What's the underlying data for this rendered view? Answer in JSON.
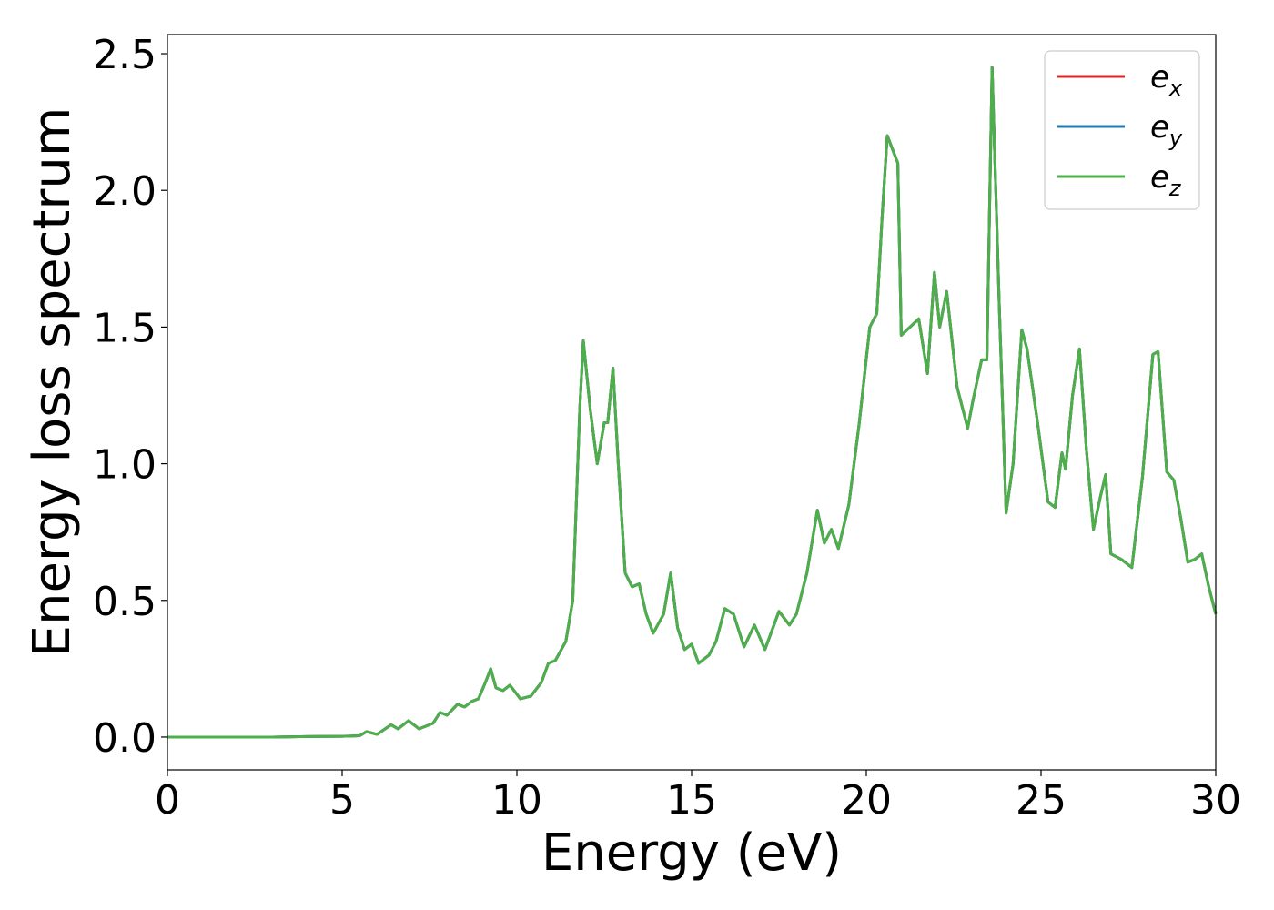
{
  "chart_data": {
    "type": "line",
    "xlabel": "Energy (eV)",
    "ylabel": "Energy loss spectrum",
    "xlim": [
      0,
      30
    ],
    "ylim": [
      -0.12,
      2.57
    ],
    "xticks": [
      "0",
      "5",
      "10",
      "15",
      "20",
      "25",
      "30"
    ],
    "yticks": [
      "0.0",
      "0.5",
      "1.0",
      "1.5",
      "2.0",
      "2.5"
    ],
    "grid": false,
    "legend_position": "top-right",
    "legend": [
      {
        "base": "e",
        "sub": "x",
        "color": "#d62728"
      },
      {
        "base": "e",
        "sub": "y",
        "color": "#1f77b4"
      },
      {
        "base": "e",
        "sub": "z",
        "color": "#4daf4a"
      }
    ],
    "x": [
      0,
      1,
      2,
      3,
      4,
      5,
      5.5,
      5.7,
      6.0,
      6.4,
      6.6,
      6.9,
      7.2,
      7.6,
      7.8,
      8.0,
      8.3,
      8.5,
      8.7,
      8.9,
      9.1,
      9.25,
      9.4,
      9.6,
      9.8,
      10.1,
      10.4,
      10.7,
      10.9,
      11.1,
      11.4,
      11.6,
      11.8,
      11.9,
      12.1,
      12.3,
      12.5,
      12.6,
      12.75,
      12.9,
      13.1,
      13.3,
      13.5,
      13.7,
      13.9,
      14.2,
      14.4,
      14.6,
      14.8,
      15.0,
      15.2,
      15.5,
      15.7,
      15.95,
      16.2,
      16.5,
      16.8,
      17.1,
      17.5,
      17.8,
      18.0,
      18.3,
      18.6,
      18.8,
      19.0,
      19.2,
      19.5,
      19.8,
      20.1,
      20.3,
      20.45,
      20.6,
      20.9,
      21.0,
      21.5,
      21.75,
      21.95,
      22.1,
      22.3,
      22.6,
      22.9,
      23.05,
      23.3,
      23.45,
      23.6,
      23.8,
      24.0,
      24.2,
      24.45,
      24.6,
      24.9,
      25.2,
      25.4,
      25.6,
      25.7,
      25.9,
      26.1,
      26.3,
      26.5,
      26.7,
      26.85,
      27.0,
      27.3,
      27.6,
      27.9,
      28.2,
      28.35,
      28.6,
      28.8,
      29.0,
      29.2,
      29.4,
      29.6,
      29.8,
      30.0
    ],
    "series": [
      {
        "name": "e_x",
        "values": [
          0.0,
          0.0,
          0.0,
          0.0,
          0.002,
          0.003,
          0.005,
          0.02,
          0.01,
          0.045,
          0.03,
          0.06,
          0.03,
          0.05,
          0.09,
          0.08,
          0.12,
          0.11,
          0.13,
          0.14,
          0.2,
          0.25,
          0.18,
          0.17,
          0.19,
          0.14,
          0.15,
          0.2,
          0.27,
          0.28,
          0.35,
          0.5,
          1.2,
          1.45,
          1.2,
          1.0,
          1.15,
          1.15,
          1.35,
          1.0,
          0.6,
          0.55,
          0.56,
          0.45,
          0.38,
          0.45,
          0.6,
          0.4,
          0.32,
          0.34,
          0.27,
          0.3,
          0.35,
          0.47,
          0.45,
          0.33,
          0.41,
          0.32,
          0.46,
          0.41,
          0.45,
          0.6,
          0.83,
          0.71,
          0.76,
          0.69,
          0.85,
          1.15,
          1.5,
          1.55,
          1.9,
          2.2,
          2.1,
          1.47,
          1.53,
          1.33,
          1.7,
          1.5,
          1.63,
          1.28,
          1.13,
          1.23,
          1.38,
          1.38,
          2.45,
          1.6,
          0.82,
          1.0,
          1.49,
          1.42,
          1.15,
          0.86,
          0.84,
          1.04,
          0.98,
          1.25,
          1.42,
          1.05,
          0.76,
          0.88,
          0.96,
          0.67,
          0.65,
          0.62,
          0.95,
          1.4,
          1.41,
          0.97,
          0.94,
          0.8,
          0.64,
          0.65,
          0.67,
          0.55,
          0.45
        ]
      },
      {
        "name": "e_y",
        "values": [
          0.0,
          0.0,
          0.0,
          0.0,
          0.002,
          0.003,
          0.005,
          0.02,
          0.01,
          0.045,
          0.03,
          0.06,
          0.03,
          0.05,
          0.09,
          0.08,
          0.12,
          0.11,
          0.13,
          0.14,
          0.2,
          0.25,
          0.18,
          0.17,
          0.19,
          0.14,
          0.15,
          0.2,
          0.27,
          0.28,
          0.35,
          0.5,
          1.2,
          1.45,
          1.2,
          1.0,
          1.15,
          1.15,
          1.35,
          1.0,
          0.6,
          0.55,
          0.56,
          0.45,
          0.38,
          0.45,
          0.6,
          0.4,
          0.32,
          0.34,
          0.27,
          0.3,
          0.35,
          0.47,
          0.45,
          0.33,
          0.41,
          0.32,
          0.46,
          0.41,
          0.45,
          0.6,
          0.83,
          0.71,
          0.76,
          0.69,
          0.85,
          1.15,
          1.5,
          1.55,
          1.9,
          2.2,
          2.1,
          1.47,
          1.53,
          1.33,
          1.7,
          1.5,
          1.63,
          1.28,
          1.13,
          1.23,
          1.38,
          1.38,
          2.45,
          1.6,
          0.82,
          1.0,
          1.49,
          1.42,
          1.15,
          0.86,
          0.84,
          1.04,
          0.98,
          1.25,
          1.42,
          1.05,
          0.76,
          0.88,
          0.96,
          0.67,
          0.65,
          0.62,
          0.95,
          1.4,
          1.41,
          0.97,
          0.94,
          0.8,
          0.64,
          0.65,
          0.67,
          0.55,
          0.45
        ]
      },
      {
        "name": "e_z",
        "values": [
          0.0,
          0.0,
          0.0,
          0.0,
          0.002,
          0.003,
          0.005,
          0.02,
          0.01,
          0.045,
          0.03,
          0.06,
          0.03,
          0.05,
          0.09,
          0.08,
          0.12,
          0.11,
          0.13,
          0.14,
          0.2,
          0.25,
          0.18,
          0.17,
          0.19,
          0.14,
          0.15,
          0.2,
          0.27,
          0.28,
          0.35,
          0.5,
          1.2,
          1.45,
          1.2,
          1.0,
          1.15,
          1.15,
          1.35,
          1.0,
          0.6,
          0.55,
          0.56,
          0.45,
          0.38,
          0.45,
          0.6,
          0.4,
          0.32,
          0.34,
          0.27,
          0.3,
          0.35,
          0.47,
          0.45,
          0.33,
          0.41,
          0.32,
          0.46,
          0.41,
          0.45,
          0.6,
          0.83,
          0.71,
          0.76,
          0.69,
          0.85,
          1.15,
          1.5,
          1.55,
          1.9,
          2.2,
          2.1,
          1.47,
          1.53,
          1.33,
          1.7,
          1.5,
          1.63,
          1.28,
          1.13,
          1.23,
          1.38,
          1.38,
          2.45,
          1.6,
          0.82,
          1.0,
          1.49,
          1.42,
          1.15,
          0.86,
          0.84,
          1.04,
          0.98,
          1.25,
          1.42,
          1.05,
          0.76,
          0.88,
          0.96,
          0.67,
          0.65,
          0.62,
          0.95,
          1.4,
          1.41,
          0.97,
          0.94,
          0.8,
          0.64,
          0.65,
          0.67,
          0.55,
          0.45
        ]
      }
    ]
  }
}
